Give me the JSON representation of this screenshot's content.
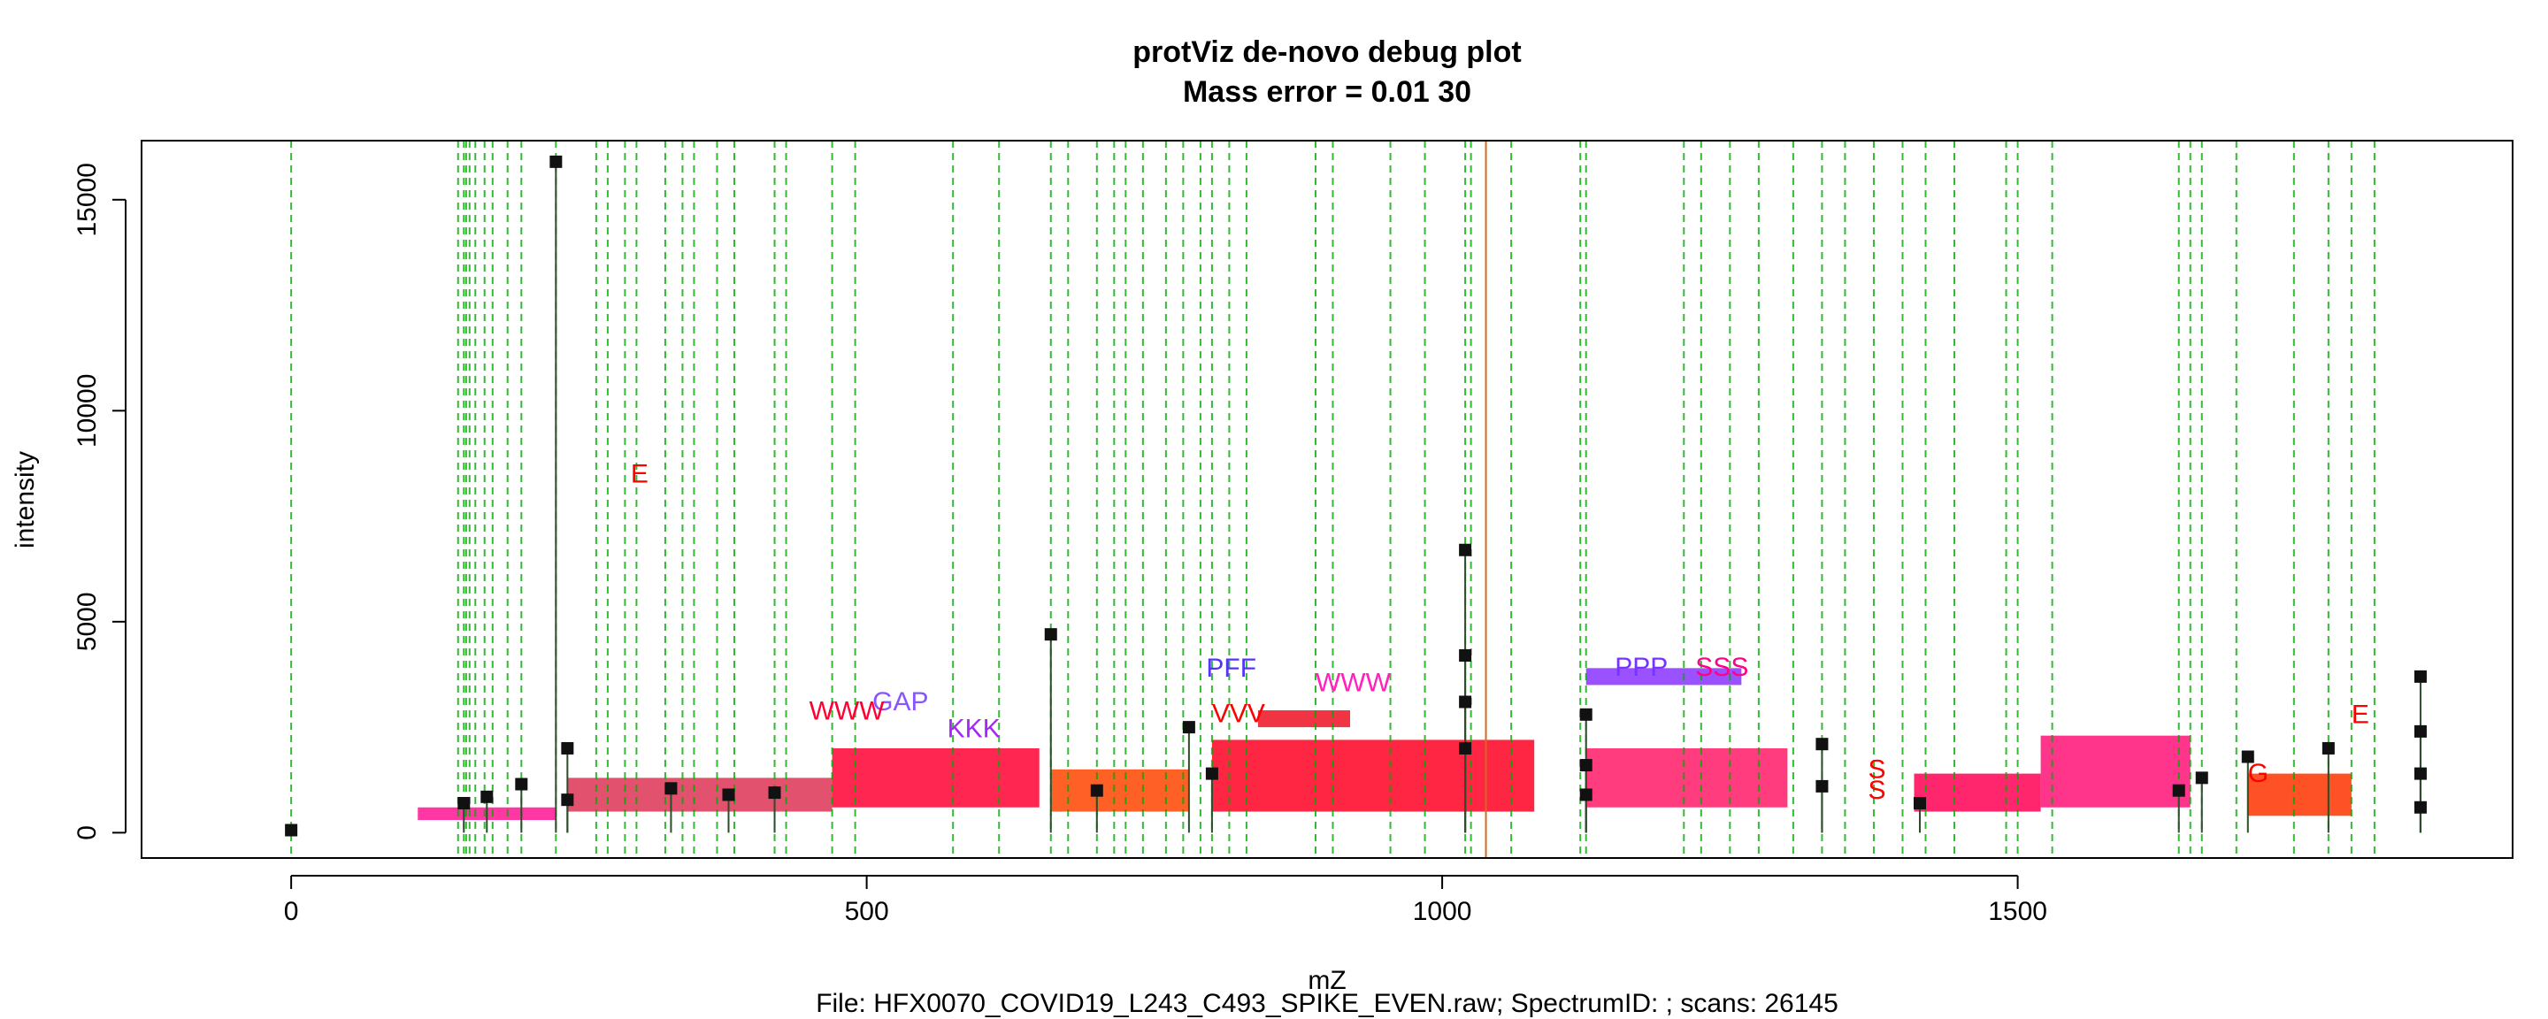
{
  "chart_data": {
    "type": "scatter",
    "title": "protViz de-novo debug plot",
    "subtitle": "Mass error = 0.01 30",
    "xlabel": "mZ",
    "ylabel": "intensity",
    "caption": "File: HFX0070_COVID19_L243_C493_SPIKE_EVEN.raw; SpectrumID: ; scans: 26145",
    "xlim": [
      -130,
      1930
    ],
    "ylim": [
      -600,
      16400
    ],
    "x_ticks": [
      0,
      500,
      1000,
      1500
    ],
    "y_ticks": [
      0,
      5000,
      10000,
      15000
    ],
    "precursor_line_mz": 1038,
    "vertical_lines_mz": [
      0,
      145,
      150,
      152,
      155,
      160,
      168,
      175,
      188,
      200,
      230,
      265,
      275,
      290,
      300,
      325,
      340,
      350,
      370,
      385,
      420,
      430,
      470,
      490,
      575,
      615,
      660,
      675,
      700,
      715,
      725,
      740,
      760,
      775,
      790,
      800,
      815,
      830,
      890,
      905,
      955,
      985,
      1020,
      1025,
      1060,
      1120,
      1125,
      1210,
      1225,
      1250,
      1275,
      1305,
      1330,
      1350,
      1375,
      1400,
      1420,
      1445,
      1490,
      1500,
      1530,
      1640,
      1650,
      1660,
      1690,
      1740,
      1770,
      1790,
      1810
    ],
    "peaks": [
      {
        "x": 0,
        "y": 60
      },
      {
        "x": 150,
        "y": 700
      },
      {
        "x": 170,
        "y": 850
      },
      {
        "x": 200,
        "y": 1150
      },
      {
        "x": 230,
        "y": 15900
      },
      {
        "x": 240,
        "y": 2000
      },
      {
        "x": 240,
        "y": 780
      },
      {
        "x": 330,
        "y": 1050
      },
      {
        "x": 380,
        "y": 900
      },
      {
        "x": 420,
        "y": 950
      },
      {
        "x": 660,
        "y": 4700
      },
      {
        "x": 700,
        "y": 1000
      },
      {
        "x": 780,
        "y": 2500
      },
      {
        "x": 800,
        "y": 1400
      },
      {
        "x": 1020,
        "y": 6700
      },
      {
        "x": 1020,
        "y": 4200
      },
      {
        "x": 1020,
        "y": 3100
      },
      {
        "x": 1020,
        "y": 2000
      },
      {
        "x": 1125,
        "y": 2800
      },
      {
        "x": 1125,
        "y": 1600
      },
      {
        "x": 1125,
        "y": 900
      },
      {
        "x": 1330,
        "y": 2100
      },
      {
        "x": 1330,
        "y": 1100
      },
      {
        "x": 1415,
        "y": 700
      },
      {
        "x": 1640,
        "y": 1000
      },
      {
        "x": 1660,
        "y": 1300
      },
      {
        "x": 1700,
        "y": 1800
      },
      {
        "x": 1770,
        "y": 2000
      },
      {
        "x": 1850,
        "y": 3700
      },
      {
        "x": 1850,
        "y": 2400
      },
      {
        "x": 1850,
        "y": 1400
      },
      {
        "x": 1850,
        "y": 600
      }
    ],
    "annotations": [
      {
        "label": "E",
        "x": 295,
        "y": 8300,
        "color": "#ff0000"
      },
      {
        "label": "PFF",
        "x": 795,
        "y": 3700,
        "color": "#5533ff"
      },
      {
        "label": "WWW",
        "x": 890,
        "y": 3350,
        "color": "#ff22bb"
      },
      {
        "label": "KKK",
        "x": 570,
        "y": 2260,
        "color": "#aa22ff"
      },
      {
        "label": "GAP",
        "x": 505,
        "y": 2900,
        "color": "#8855ff"
      },
      {
        "label": "WWW",
        "x": 450,
        "y": 2680,
        "color": "#ff0033"
      },
      {
        "label": "VVV",
        "x": 800,
        "y": 2620,
        "color": "#ff0000"
      },
      {
        "label": "PPP",
        "x": 1150,
        "y": 3720,
        "color": "#7733ff"
      },
      {
        "label": "SSS",
        "x": 1220,
        "y": 3720,
        "color": "#ff0088"
      },
      {
        "label": "E",
        "x": 1790,
        "y": 2600,
        "color": "#ff0000"
      },
      {
        "label": "S",
        "x": 1370,
        "y": 1300,
        "color": "#ff0000"
      },
      {
        "label": "S",
        "x": 1370,
        "y": 800,
        "color": "#ff0000"
      },
      {
        "label": "G",
        "x": 1700,
        "y": 1200,
        "color": "#ff0000"
      }
    ],
    "grid": false,
    "legend": "none"
  }
}
